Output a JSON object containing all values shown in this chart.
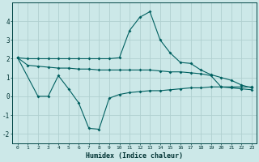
{
  "xlabel": "Humidex (Indice chaleur)",
  "bg_color": "#cce8e8",
  "grid_color": "#b0d0d0",
  "line_color": "#006060",
  "xlim": [
    -0.5,
    23.5
  ],
  "ylim": [
    -2.5,
    5.0
  ],
  "yticks": [
    -2,
    -1,
    0,
    1,
    2,
    3,
    4
  ],
  "xticks": [
    0,
    1,
    2,
    3,
    4,
    5,
    6,
    7,
    8,
    9,
    10,
    11,
    12,
    13,
    14,
    15,
    16,
    17,
    18,
    19,
    20,
    21,
    22,
    23
  ],
  "line1_x": [
    0,
    1,
    2,
    3,
    4,
    5,
    6,
    7,
    8,
    9,
    10,
    11,
    12,
    13,
    14,
    15,
    16,
    17,
    18,
    19,
    20,
    21,
    22,
    23
  ],
  "line1_y": [
    2.05,
    2.0,
    2.0,
    2.0,
    2.0,
    2.0,
    2.0,
    2.0,
    2.0,
    2.0,
    2.05,
    3.5,
    4.2,
    4.5,
    3.0,
    2.3,
    1.8,
    1.75,
    1.4,
    1.15,
    1.0,
    0.85,
    0.6,
    0.45
  ],
  "line2_x": [
    0,
    1,
    2,
    3,
    4,
    5,
    6,
    7,
    8,
    9,
    10,
    11,
    12,
    13,
    14,
    15,
    16,
    17,
    18,
    19,
    20,
    21,
    22,
    23
  ],
  "line2_y": [
    2.05,
    1.65,
    1.6,
    1.55,
    1.5,
    1.5,
    1.45,
    1.45,
    1.4,
    1.4,
    1.4,
    1.4,
    1.4,
    1.4,
    1.35,
    1.3,
    1.3,
    1.25,
    1.2,
    1.1,
    0.5,
    0.45,
    0.4,
    0.35
  ],
  "line3_x": [
    0,
    2,
    3,
    4,
    5,
    6,
    7,
    8,
    9,
    10,
    11,
    12,
    13,
    14,
    15,
    16,
    17,
    18,
    19,
    20,
    21,
    22,
    23
  ],
  "line3_y": [
    2.05,
    0.0,
    0.0,
    1.1,
    0.4,
    -0.35,
    -1.7,
    -1.75,
    -0.1,
    0.1,
    0.2,
    0.25,
    0.3,
    0.3,
    0.35,
    0.4,
    0.45,
    0.45,
    0.5,
    0.5,
    0.5,
    0.5,
    0.5
  ]
}
